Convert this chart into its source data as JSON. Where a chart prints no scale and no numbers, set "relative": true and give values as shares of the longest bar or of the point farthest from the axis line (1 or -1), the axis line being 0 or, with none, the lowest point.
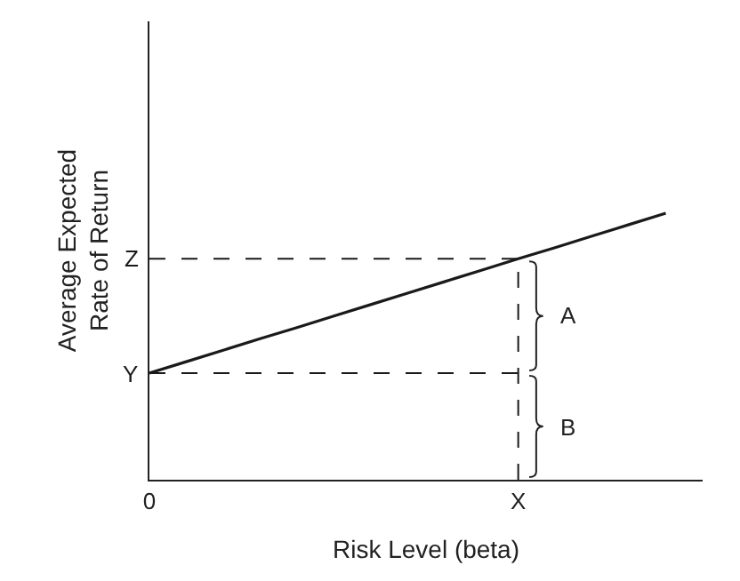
{
  "chart_data": {
    "type": "line",
    "relative": true,
    "xlabel": "Risk Level (beta)",
    "ylabel": "Average Expected\nRate of Return",
    "categories": [
      "0",
      null,
      null,
      null,
      null,
      null,
      null,
      null,
      null,
      null,
      "X",
      null,
      null,
      null,
      null,
      null
    ],
    "legend": false,
    "marker": "none",
    "series": [
      {
        "color": "#1a1a1a",
        "values": [
          0.4,
          0.443,
          0.486,
          0.529,
          0.571,
          0.614,
          0.657,
          0.7,
          0.743,
          0.786,
          0.829,
          0.871,
          0.914,
          0.957,
          1,
          null
        ],
        "line_style": "solid"
      },
      {
        "name": "Z",
        "color": "#1a1a1a",
        "values": [
          0.829,
          0.829,
          0.829,
          0.829,
          0.829,
          0.829,
          0.829,
          0.829,
          0.829,
          0.829,
          0.829,
          null,
          null,
          null,
          null,
          null
        ],
        "line_style": "dashed"
      },
      {
        "name": "Y",
        "color": "#1a1a1a",
        "values": [
          0.4,
          0.4,
          0.4,
          0.4,
          0.4,
          0.4,
          0.4,
          0.4,
          0.4,
          0.4,
          0.4,
          null,
          null,
          null,
          null,
          null
        ],
        "line_style": "dashed"
      },
      {
        "color": "#1a1a1a",
        "x": [
          "X",
          "X"
        ],
        "values": [
          0,
          0.829
        ],
        "line_style": "dashed"
      }
    ],
    "annotations": [
      "A",
      "B"
    ]
  }
}
